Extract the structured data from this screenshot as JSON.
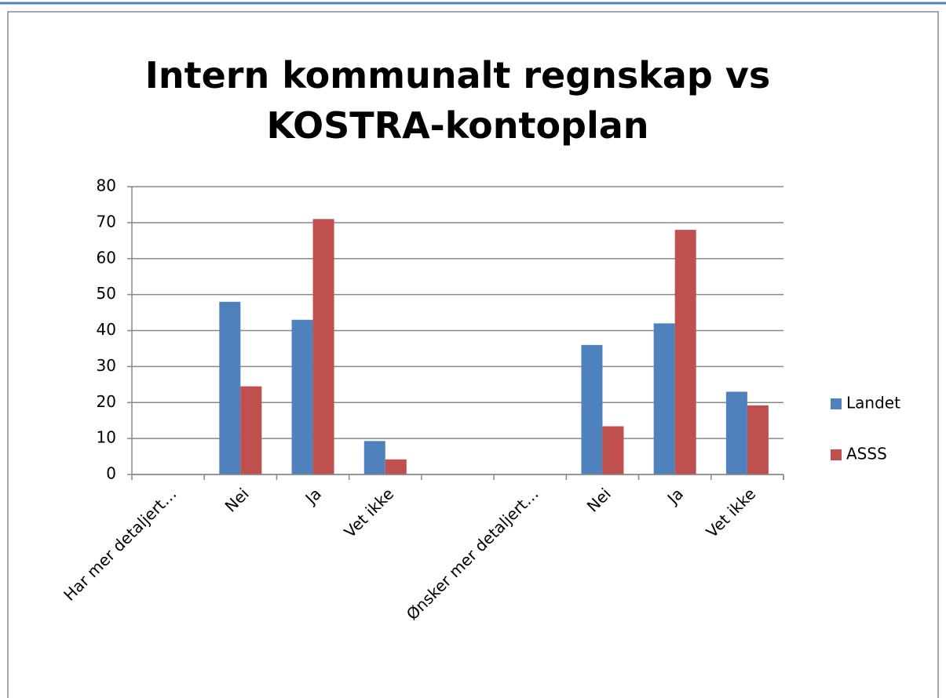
{
  "chart_data": {
    "type": "bar",
    "title": "Intern kommunalt regnskap vs KOSTRA-kontoplan",
    "categories": [
      "Har mer detaljert…",
      "Nei",
      "Ja",
      "Vet ikke",
      null,
      "Ønsker mer detaljert…",
      "Nei",
      "Ja",
      "Vet ikke"
    ],
    "series": [
      {
        "name": "Landet",
        "color": "#4f81bd",
        "values": [
          null,
          48,
          43,
          9.3,
          null,
          null,
          36,
          42,
          23
        ]
      },
      {
        "name": "ASSS",
        "color": "#c0504d",
        "values": [
          null,
          24.5,
          71,
          4.2,
          null,
          null,
          13.4,
          68,
          19.2
        ]
      }
    ],
    "ylim": [
      0,
      80
    ],
    "yticks": [
      0,
      10,
      20,
      30,
      40,
      50,
      60,
      70,
      80
    ],
    "grid": true,
    "legend": "right"
  }
}
